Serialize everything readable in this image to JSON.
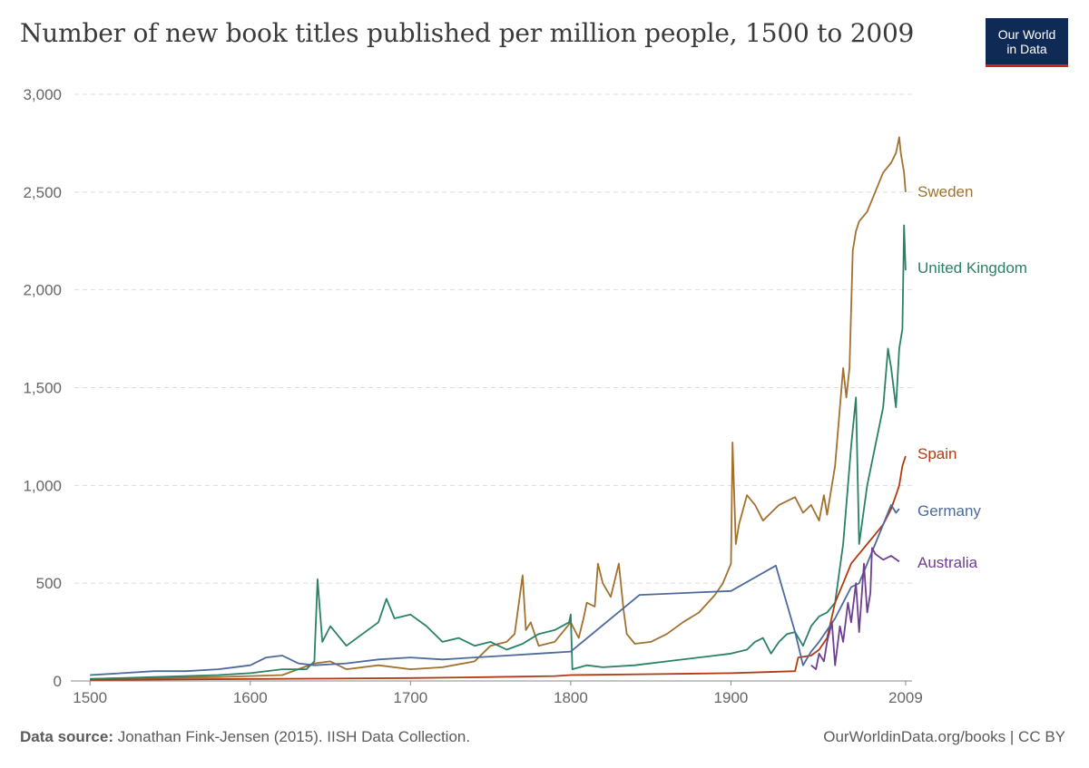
{
  "header": {
    "title": "Number of new book titles published per million people, 1500 to 2009",
    "logo_line1": "Our World",
    "logo_line2": "in Data"
  },
  "footer": {
    "source_label": "Data source:",
    "source_text": "Jonathan Fink-Jensen (2015). IISH Data Collection.",
    "right_text": "OurWorldinData.org/books | CC BY"
  },
  "colors": {
    "Sweden": "#a2712f",
    "United Kingdom": "#2a8165",
    "Spain": "#b23a12",
    "Germany": "#4c6a9c",
    "Australia": "#6d3e91",
    "grid": "#dddddd",
    "axis": "#888888"
  },
  "chart_data": {
    "type": "line",
    "title": "Number of new book titles published per million people, 1500 to 2009",
    "xlabel": "",
    "ylabel": "",
    "xlim": [
      1488,
      2013
    ],
    "ylim": [
      0,
      3000
    ],
    "x_ticks": [
      1500,
      1600,
      1700,
      1800,
      1900,
      2009
    ],
    "y_ticks": [
      0,
      500,
      1000,
      1500,
      2000,
      2500,
      3000
    ],
    "y_tick_labels": [
      "0",
      "500",
      "1,000",
      "1,500",
      "2,000",
      "2,500",
      "3,000"
    ],
    "grid": "horizontal dashed",
    "legend": "inline labels at right end of lines",
    "series": [
      {
        "name": "Sweden",
        "x": [
          1500,
          1540,
          1580,
          1600,
          1620,
          1640,
          1650,
          1660,
          1680,
          1700,
          1720,
          1740,
          1750,
          1760,
          1765,
          1770,
          1772,
          1775,
          1780,
          1790,
          1800,
          1805,
          1808,
          1810,
          1815,
          1817,
          1820,
          1825,
          1830,
          1833,
          1835,
          1840,
          1850,
          1860,
          1870,
          1880,
          1890,
          1895,
          1900,
          1901,
          1903,
          1905,
          1910,
          1915,
          1920,
          1925,
          1930,
          1935,
          1940,
          1945,
          1950,
          1955,
          1958,
          1960,
          1965,
          1970,
          1972,
          1974,
          1976,
          1978,
          1980,
          1985,
          1990,
          1995,
          2000,
          2003,
          2005,
          2006,
          2008,
          2009
        ],
        "y": [
          10,
          15,
          20,
          25,
          30,
          90,
          100,
          60,
          80,
          60,
          70,
          100,
          180,
          200,
          240,
          540,
          260,
          300,
          180,
          200,
          300,
          220,
          320,
          400,
          380,
          600,
          500,
          430,
          600,
          360,
          240,
          190,
          200,
          240,
          300,
          350,
          440,
          500,
          600,
          1220,
          700,
          800,
          950,
          900,
          820,
          860,
          900,
          920,
          940,
          860,
          900,
          820,
          950,
          850,
          1100,
          1600,
          1450,
          1600,
          2200,
          2300,
          2350,
          2400,
          2500,
          2600,
          2650,
          2700,
          2780,
          2700,
          2600,
          2500
        ]
      },
      {
        "name": "United Kingdom",
        "x": [
          1500,
          1540,
          1580,
          1600,
          1620,
          1635,
          1640,
          1642,
          1645,
          1650,
          1660,
          1670,
          1680,
          1685,
          1690,
          1700,
          1710,
          1720,
          1730,
          1740,
          1750,
          1760,
          1770,
          1780,
          1790,
          1799,
          1800,
          1801,
          1810,
          1820,
          1840,
          1860,
          1880,
          1890,
          1900,
          1910,
          1915,
          1920,
          1925,
          1930,
          1935,
          1940,
          1945,
          1950,
          1955,
          1960,
          1965,
          1970,
          1975,
          1978,
          1980,
          1985,
          1990,
          1995,
          1998,
          2000,
          2003,
          2005,
          2007,
          2008,
          2009
        ],
        "y": [
          10,
          20,
          30,
          40,
          60,
          60,
          100,
          520,
          200,
          280,
          180,
          240,
          300,
          420,
          320,
          340,
          280,
          200,
          220,
          180,
          200,
          160,
          190,
          240,
          260,
          300,
          340,
          60,
          80,
          70,
          80,
          100,
          120,
          130,
          140,
          160,
          200,
          220,
          140,
          200,
          240,
          250,
          180,
          280,
          330,
          350,
          400,
          700,
          1200,
          1450,
          700,
          1000,
          1200,
          1400,
          1700,
          1600,
          1400,
          1700,
          1800,
          2330,
          2100
        ]
      },
      {
        "name": "Spain",
        "x": [
          1500,
          1550,
          1600,
          1650,
          1700,
          1750,
          1790,
          1800,
          1850,
          1900,
          1920,
          1940,
          1942,
          1950,
          1955,
          1960,
          1965,
          1970,
          1975,
          1980,
          1985,
          1990,
          1995,
          2000,
          2003,
          2005,
          2007,
          2009
        ],
        "y": [
          5,
          8,
          10,
          12,
          15,
          20,
          25,
          30,
          35,
          40,
          45,
          50,
          120,
          130,
          160,
          220,
          400,
          500,
          600,
          650,
          700,
          750,
          800,
          880,
          950,
          1000,
          1100,
          1150
        ]
      },
      {
        "name": "Germany",
        "x": [
          1500,
          1520,
          1540,
          1560,
          1580,
          1600,
          1610,
          1620,
          1630,
          1640,
          1660,
          1680,
          1700,
          1720,
          1740,
          1760,
          1780,
          1800,
          1843,
          1900,
          1928,
          1940,
          1945,
          1950,
          1955,
          1960,
          1965,
          1970,
          1975,
          1980,
          1985,
          1990,
          1995,
          2000,
          2003,
          2005
        ],
        "y": [
          30,
          40,
          50,
          50,
          60,
          80,
          120,
          130,
          90,
          80,
          90,
          110,
          120,
          110,
          120,
          130,
          140,
          150,
          440,
          460,
          590,
          250,
          80,
          150,
          200,
          260,
          320,
          400,
          480,
          500,
          600,
          700,
          800,
          900,
          860,
          880
        ]
      },
      {
        "name": "Australia",
        "x": [
          1950,
          1953,
          1955,
          1958,
          1960,
          1963,
          1965,
          1968,
          1970,
          1973,
          1975,
          1978,
          1980,
          1983,
          1985,
          1987,
          1988,
          1990,
          1995,
          2000,
          2005
        ],
        "y": [
          80,
          60,
          140,
          100,
          200,
          300,
          80,
          280,
          200,
          400,
          300,
          500,
          250,
          600,
          350,
          450,
          680,
          650,
          620,
          640,
          610
        ]
      }
    ]
  }
}
